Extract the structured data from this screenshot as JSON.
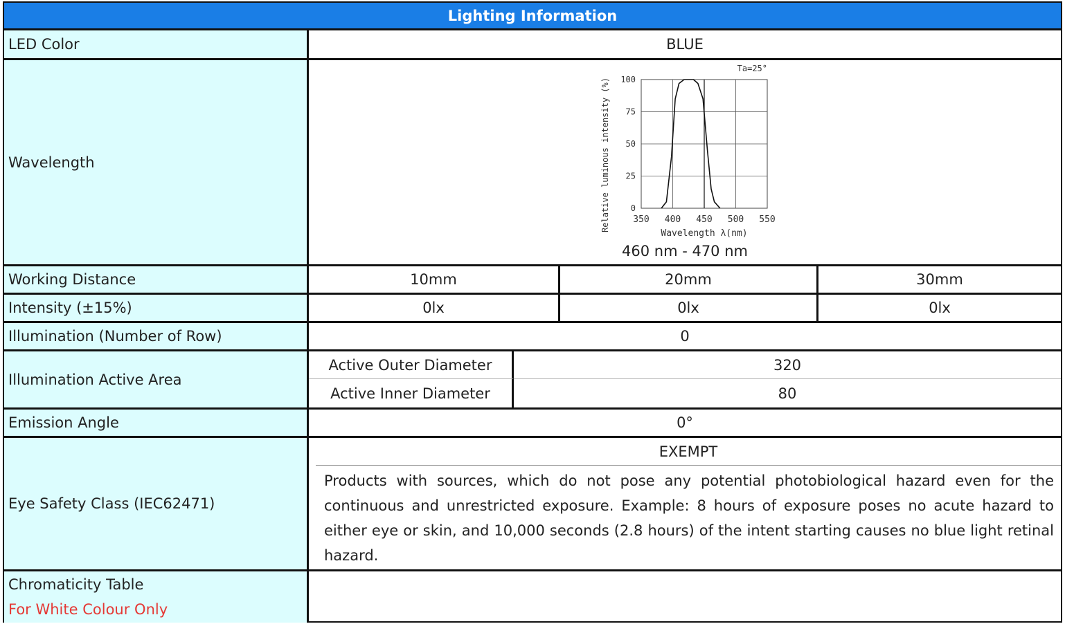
{
  "title": "Lighting Information",
  "rows": {
    "led_color": {
      "label": "LED Color",
      "value": "BLUE"
    },
    "wavelength": {
      "label": "Wavelength",
      "value": "460 nm - 470 nm"
    },
    "working_distance": {
      "label": "Working Distance",
      "values": [
        "10mm",
        "20mm",
        "30mm"
      ]
    },
    "intensity": {
      "label": "Intensity (±15%)",
      "values": [
        "0lx",
        "0lx",
        "0lx"
      ]
    },
    "illumination_rows": {
      "label": "Illumination (Number of Row)",
      "value": "0"
    },
    "active_area": {
      "label": "Illumination Active Area",
      "outer_label": "Active Outer Diameter",
      "outer_value": "320",
      "inner_label": "Active Inner Diameter",
      "inner_value": "80"
    },
    "emission_angle": {
      "label": "Emission Angle",
      "value": "0°"
    },
    "eye_safety": {
      "label": "Eye Safety Class (IEC62471)",
      "class": "EXEMPT",
      "description": "Products with sources, which do not pose any potential photobiological hazard even for the continuous and unrestricted exposure. Example: 8 hours of exposure poses no acute hazard to either eye or skin, and 10,000 seconds (2.8 hours) of the intent starting causes no blue light retinal hazard."
    },
    "chromaticity": {
      "label": "Chromaticity Table",
      "note": "For White Colour Only"
    }
  },
  "chart_data": {
    "type": "line",
    "title": "",
    "annotation": "Ta=25°",
    "xlabel": "Wavelength λ(nm)",
    "ylabel": "Relative luminous intensity (%)",
    "x_ticks": [
      "350",
      "400",
      "450",
      "500",
      "550"
    ],
    "y_ticks": [
      "0",
      "25",
      "50",
      "75",
      "100"
    ],
    "xlim": [
      350,
      550
    ],
    "ylim": [
      0,
      100
    ],
    "grid": true,
    "series": [
      {
        "x": [
          382,
          390,
          398,
          404,
          410,
          418,
          425,
          433,
          440,
          448,
          455,
          461,
          466,
          475
        ],
        "y": [
          0,
          5,
          40,
          85,
          97,
          100,
          100,
          100,
          97,
          85,
          45,
          15,
          5,
          0
        ]
      }
    ],
    "marker_x": 450
  },
  "colors": {
    "header_bg": "#1a7ee6",
    "label_bg": "#dcfdfe",
    "note_red": "#e53935"
  }
}
